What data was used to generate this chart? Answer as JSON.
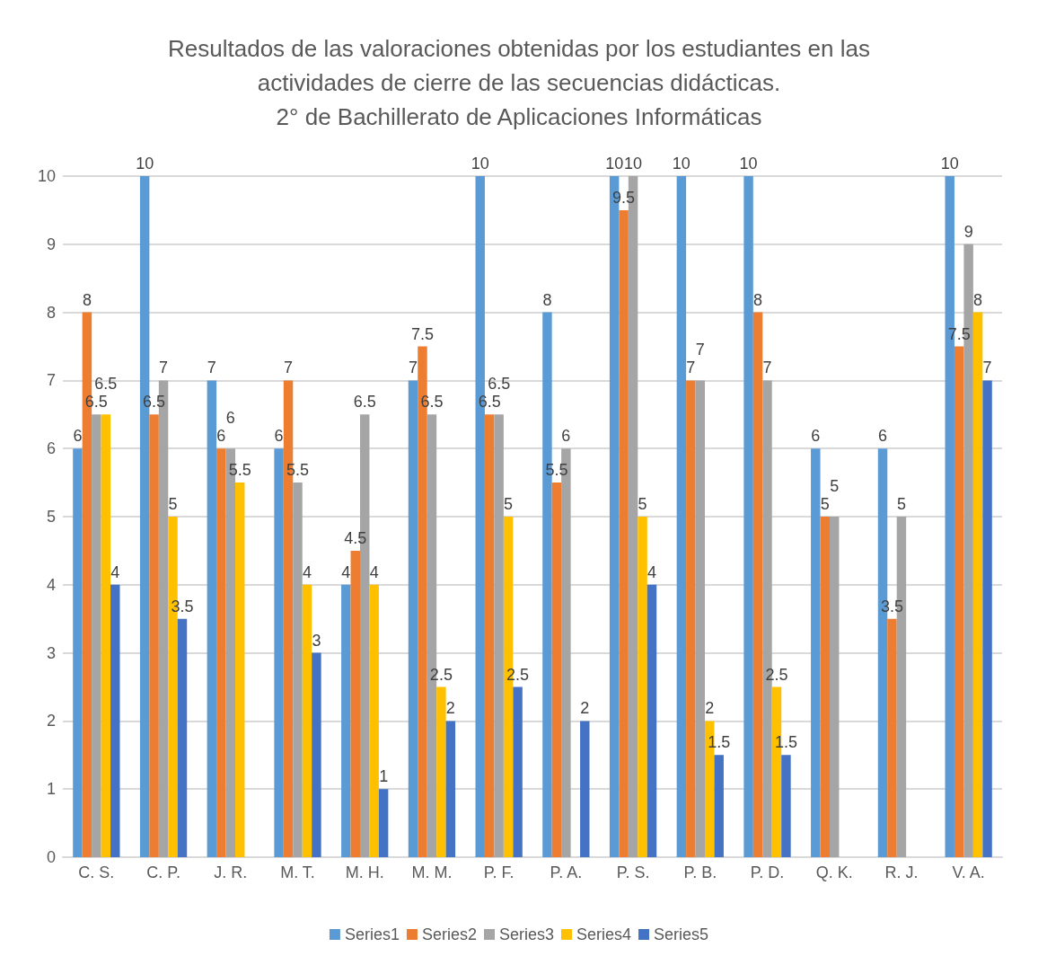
{
  "chart_data": {
    "type": "bar",
    "title": "Resultados de las valoraciones obtenidas por los estudiantes en las\nactividades de cierre de las secuencias didácticas.\n2° de Bachillerato de Aplicaciones Informáticas",
    "categories": [
      "C. S.",
      "C. P.",
      "J. R.",
      "M. T.",
      "M. H.",
      "M. M.",
      "P. F.",
      "P. A.",
      "P. S.",
      "P. B.",
      "P. D.",
      "Q. K.",
      "R. J.",
      "V. A."
    ],
    "series": [
      {
        "name": "Series1",
        "color": "#5b9bd5",
        "values": [
          6,
          10,
          7,
          6,
          4,
          7,
          10,
          8,
          10,
          10,
          10,
          6,
          6,
          10
        ]
      },
      {
        "name": "Series2",
        "color": "#ed7d31",
        "values": [
          8,
          6.5,
          6,
          7,
          4.5,
          7.5,
          6.5,
          5.5,
          9.5,
          7,
          8,
          5,
          3.5,
          7.5
        ]
      },
      {
        "name": "Series3",
        "color": "#a5a5a5",
        "values": [
          6.5,
          7,
          6,
          5.5,
          6.5,
          6.5,
          6.5,
          6,
          10,
          7,
          7,
          5,
          5,
          9
        ]
      },
      {
        "name": "Series4",
        "color": "#ffc000",
        "values": [
          6.5,
          5,
          5.5,
          4,
          4,
          2.5,
          5,
          null,
          5,
          2,
          2.5,
          null,
          null,
          8
        ]
      },
      {
        "name": "Series5",
        "color": "#4472c4",
        "values": [
          4,
          3.5,
          null,
          3,
          1,
          2,
          2.5,
          2,
          4,
          1.5,
          1.5,
          null,
          null,
          7
        ]
      }
    ],
    "ylim": [
      0,
      10
    ],
    "yticks": [
      0,
      1,
      2,
      3,
      4,
      5,
      6,
      7,
      8,
      9,
      10
    ],
    "grid": "y",
    "legend": "bottom",
    "data_labels": true
  }
}
